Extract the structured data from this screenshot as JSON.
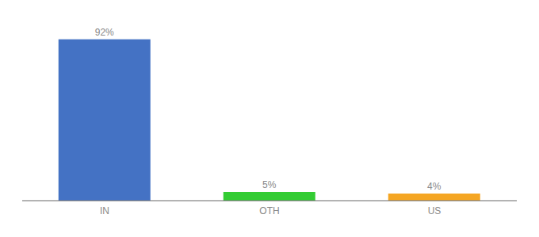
{
  "chart_data": {
    "type": "bar",
    "categories": [
      "IN",
      "OTH",
      "US"
    ],
    "values": [
      92,
      5,
      4
    ],
    "value_labels": [
      "92%",
      "5%",
      "4%"
    ],
    "colors": [
      "#4472c4",
      "#33cc33",
      "#f5a623"
    ],
    "ylim": [
      0,
      100
    ],
    "data_labels": true,
    "tick_labels": "x",
    "grid": false
  }
}
